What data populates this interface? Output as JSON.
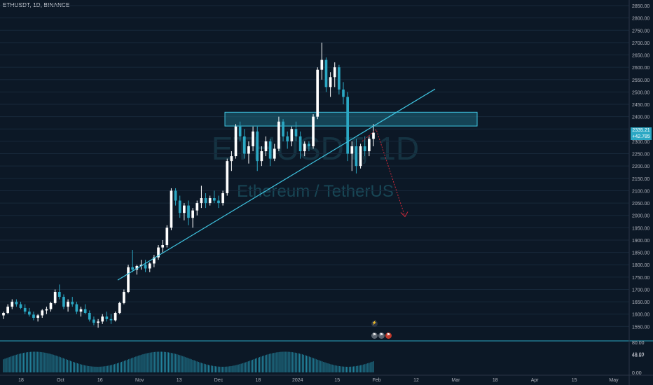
{
  "symbol_title": "ETHUSDT, 1D, BINANCE",
  "watermark": {
    "ticker": "ETHUSDT, 1D",
    "name": "Ethereum / TetherUS"
  },
  "last_price": {
    "value": "2335.21",
    "change": "+42.785"
  },
  "osc_labels": [
    "80.00",
    "49.03",
    "46.87",
    "0.00"
  ],
  "colors": {
    "background": "#0c1826",
    "up": "#ffffff",
    "down": "#2ba8c4",
    "trend": "#3fc4e0",
    "zone_fill": "#1e6a7e",
    "arrow": "#d12a3a",
    "axis_text": "#b2b5be",
    "grid": "#17283a"
  },
  "icons": [
    "lightning-icon",
    "flag-icon"
  ],
  "chart_data": [
    {
      "type": "candlestick",
      "title": "ETHUSDT, 1D, BINANCE",
      "ylim": [
        1500,
        2850
      ],
      "y_ticks": [
        "1550.00",
        "1600.00",
        "1650.00",
        "1700.00",
        "1750.00",
        "1800.00",
        "1850.00",
        "1900.00",
        "1950.00",
        "2000.00",
        "2050.00",
        "2100.00",
        "2150.00",
        "2200.00",
        "2250.00",
        "2300.00",
        "2350.00",
        "2400.00",
        "2450.00",
        "2500.00",
        "2550.00",
        "2600.00",
        "2650.00",
        "2700.00",
        "2750.00",
        "2800.00",
        "2850.00"
      ],
      "x_ticks": [
        "18",
        "Oct",
        "16",
        "Nov",
        "13",
        "Dec",
        "18",
        "2024",
        "15",
        "Feb",
        "12",
        "Mar",
        "18",
        "Apr",
        "15",
        "May"
      ],
      "candles": [
        [
          1595,
          1610,
          1580,
          1605
        ],
        [
          1605,
          1640,
          1600,
          1630
        ],
        [
          1630,
          1660,
          1620,
          1650
        ],
        [
          1650,
          1660,
          1630,
          1640
        ],
        [
          1640,
          1650,
          1620,
          1625
        ],
        [
          1625,
          1640,
          1600,
          1610
        ],
        [
          1610,
          1625,
          1590,
          1598
        ],
        [
          1598,
          1610,
          1575,
          1585
        ],
        [
          1585,
          1600,
          1570,
          1595
        ],
        [
          1595,
          1620,
          1585,
          1615
        ],
        [
          1615,
          1630,
          1600,
          1620
        ],
        [
          1620,
          1650,
          1610,
          1645
        ],
        [
          1645,
          1700,
          1640,
          1690
        ],
        [
          1690,
          1720,
          1660,
          1670
        ],
        [
          1670,
          1680,
          1620,
          1630
        ],
        [
          1630,
          1660,
          1610,
          1650
        ],
        [
          1650,
          1670,
          1630,
          1640
        ],
        [
          1640,
          1650,
          1600,
          1610
        ],
        [
          1610,
          1630,
          1590,
          1620
        ],
        [
          1620,
          1640,
          1600,
          1605
        ],
        [
          1605,
          1615,
          1570,
          1578
        ],
        [
          1578,
          1590,
          1555,
          1565
        ],
        [
          1565,
          1580,
          1545,
          1570
        ],
        [
          1570,
          1600,
          1560,
          1590
        ],
        [
          1590,
          1610,
          1570,
          1580
        ],
        [
          1580,
          1600,
          1560,
          1575
        ],
        [
          1575,
          1610,
          1570,
          1605
        ],
        [
          1605,
          1650,
          1600,
          1645
        ],
        [
          1645,
          1700,
          1640,
          1690
        ],
        [
          1690,
          1800,
          1685,
          1790
        ],
        [
          1790,
          1860,
          1770,
          1780
        ],
        [
          1780,
          1800,
          1760,
          1795
        ],
        [
          1795,
          1820,
          1780,
          1800
        ],
        [
          1800,
          1820,
          1770,
          1785
        ],
        [
          1785,
          1810,
          1770,
          1805
        ],
        [
          1805,
          1840,
          1790,
          1830
        ],
        [
          1830,
          1880,
          1820,
          1870
        ],
        [
          1870,
          1900,
          1850,
          1880
        ],
        [
          1880,
          1960,
          1870,
          1950
        ],
        [
          1950,
          2110,
          1940,
          2100
        ],
        [
          2100,
          2110,
          2040,
          2060
        ],
        [
          2060,
          2080,
          1990,
          2010
        ],
        [
          2010,
          2050,
          1980,
          2040
        ],
        [
          2040,
          2060,
          1960,
          1990
        ],
        [
          1990,
          2030,
          1950,
          2020
        ],
        [
          2020,
          2060,
          2000,
          2050
        ],
        [
          2050,
          2120,
          2030,
          2070
        ],
        [
          2070,
          2090,
          2030,
          2050
        ],
        [
          2050,
          2080,
          2040,
          2070
        ],
        [
          2070,
          2100,
          2050,
          2060
        ],
        [
          2060,
          2080,
          2030,
          2050
        ],
        [
          2050,
          2100,
          2040,
          2090
        ],
        [
          2090,
          2230,
          2080,
          2220
        ],
        [
          2220,
          2260,
          2180,
          2240
        ],
        [
          2240,
          2370,
          2230,
          2360
        ],
        [
          2360,
          2380,
          2300,
          2320
        ],
        [
          2320,
          2350,
          2230,
          2250
        ],
        [
          2250,
          2300,
          2210,
          2280
        ],
        [
          2280,
          2360,
          2260,
          2340
        ],
        [
          2340,
          2360,
          2180,
          2220
        ],
        [
          2220,
          2280,
          2200,
          2260
        ],
        [
          2260,
          2320,
          2240,
          2300
        ],
        [
          2300,
          2310,
          2200,
          2230
        ],
        [
          2230,
          2290,
          2220,
          2270
        ],
        [
          2270,
          2400,
          2260,
          2380
        ],
        [
          2380,
          2390,
          2300,
          2320
        ],
        [
          2320,
          2340,
          2270,
          2300
        ],
        [
          2300,
          2360,
          2280,
          2350
        ],
        [
          2350,
          2380,
          2300,
          2320
        ],
        [
          2320,
          2340,
          2230,
          2260
        ],
        [
          2260,
          2300,
          2240,
          2290
        ],
        [
          2290,
          2300,
          2260,
          2280
        ],
        [
          2280,
          2410,
          2270,
          2400
        ],
        [
          2400,
          2600,
          2390,
          2590
        ],
        [
          2590,
          2700,
          2550,
          2630
        ],
        [
          2630,
          2640,
          2500,
          2520
        ],
        [
          2520,
          2580,
          2480,
          2560
        ],
        [
          2560,
          2620,
          2520,
          2600
        ],
        [
          2600,
          2610,
          2490,
          2510
        ],
        [
          2510,
          2540,
          2450,
          2480
        ],
        [
          2480,
          2500,
          2220,
          2250
        ],
        [
          2250,
          2300,
          2180,
          2280
        ],
        [
          2280,
          2310,
          2170,
          2200
        ],
        [
          2200,
          2290,
          2190,
          2280
        ],
        [
          2280,
          2320,
          2240,
          2260
        ],
        [
          2260,
          2320,
          2240,
          2310
        ],
        [
          2310,
          2370,
          2280,
          2335
        ]
      ],
      "ohlc_order": [
        "open",
        "high",
        "low",
        "close"
      ],
      "overlays": {
        "trendline": [
          [
            1,
            1738
          ],
          [
            2,
            2512
          ]
        ],
        "resistance_zone": [
          2362,
          2418
        ],
        "projection": [
          [
            2300,
            2348
          ],
          [
            2200,
            1995
          ]
        ]
      },
      "oscillator": {
        "values": [
          46.87,
          49.03
        ],
        "ylim": [
          0,
          80
        ]
      }
    }
  ]
}
